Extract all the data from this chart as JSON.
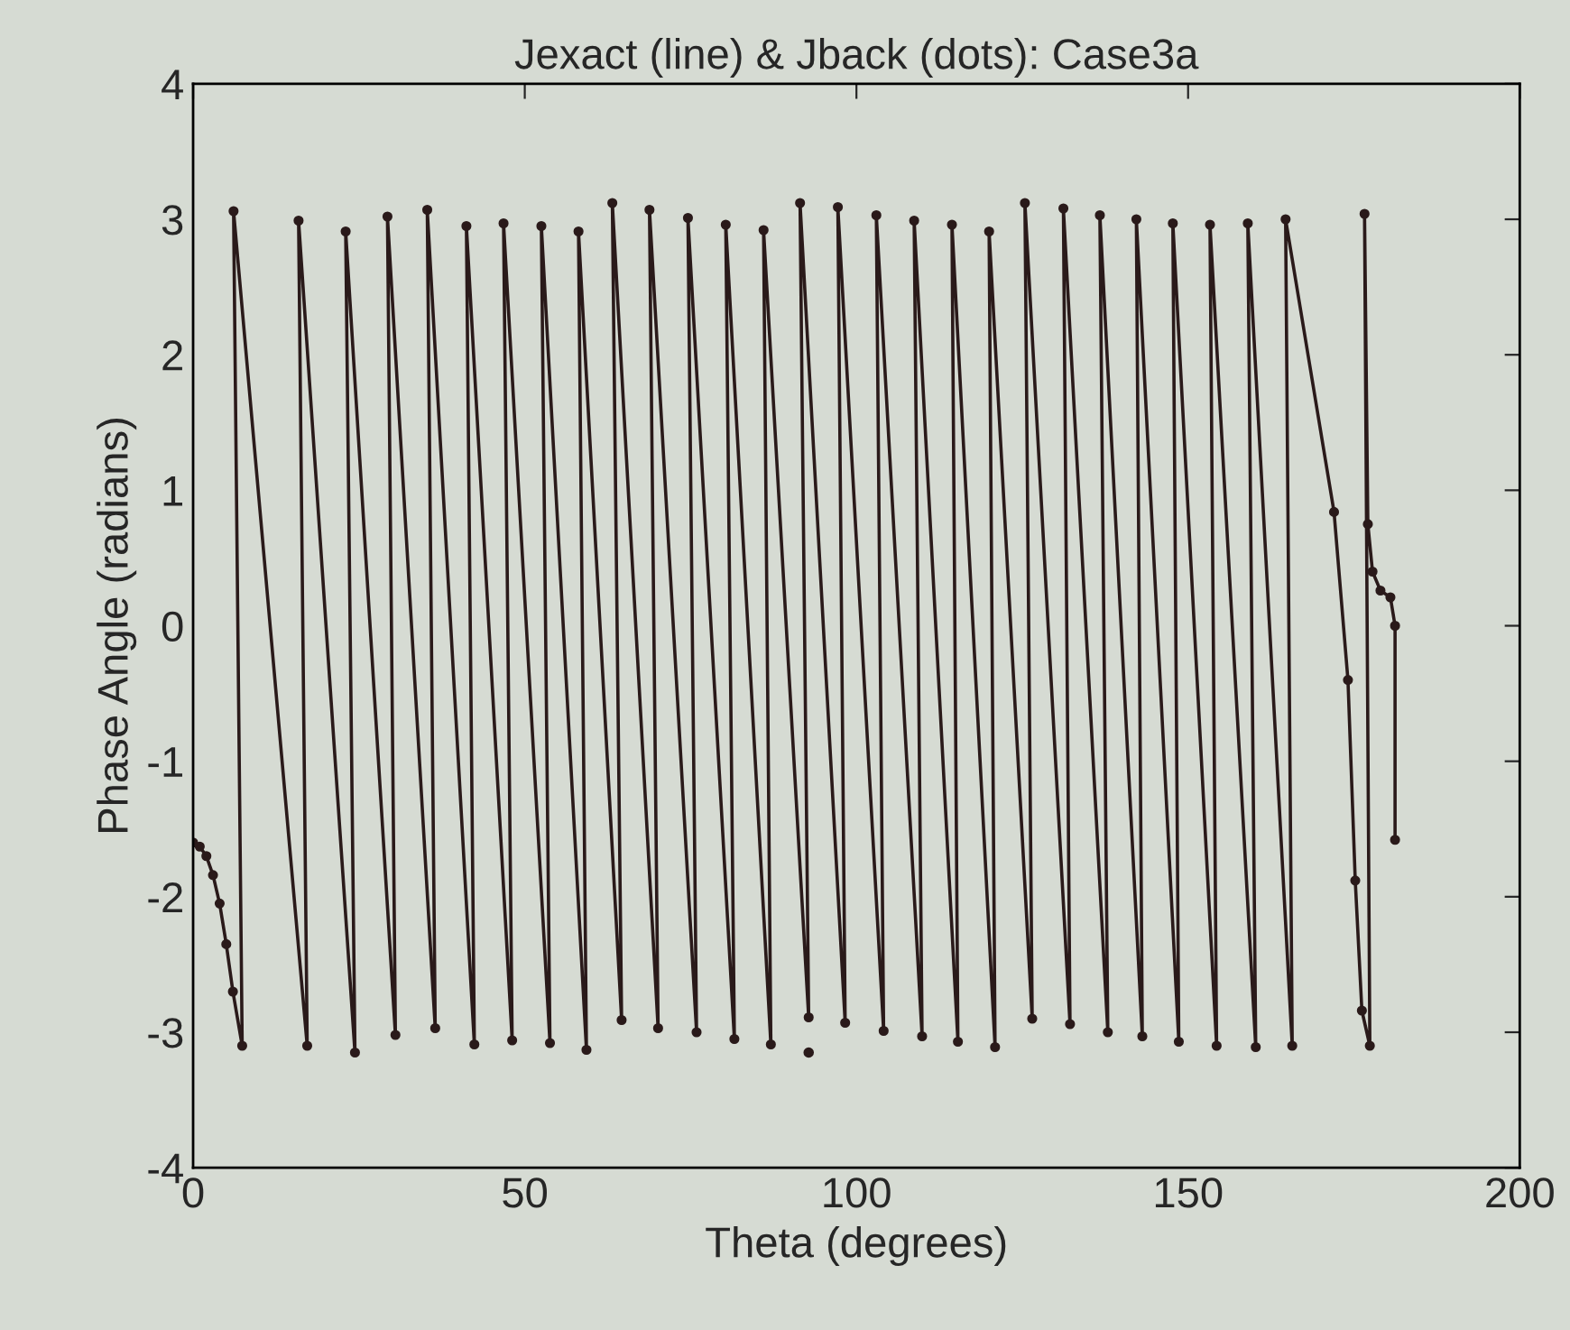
{
  "chart_data": {
    "type": "line",
    "title": "Jexact (line) & Jback (dots): Case3a",
    "xlabel": "Theta (degrees)",
    "ylabel": "Phase Angle (radians)",
    "series": [
      {
        "color": "#2a1a1a",
        "marker": "circle",
        "line_style": "solid",
        "x": [
          0,
          1,
          2,
          3,
          4,
          5,
          6,
          7.4,
          6.1,
          17.2,
          15.9,
          24.4,
          23.0,
          30.5,
          29.3,
          36.5,
          35.3,
          42.4,
          41.2,
          48.1,
          46.8,
          53.8,
          52.5,
          59.3,
          58.1,
          64.6,
          63.2,
          70.1,
          68.8,
          75.9,
          74.6,
          81.6,
          80.3,
          87.1,
          86.0,
          92.8,
          91.5,
          98.3,
          97.2,
          104.1,
          103.0,
          109.9,
          108.7,
          115.3,
          114.4,
          120.9,
          120.0,
          126.5,
          125.4,
          132.2,
          131.2,
          137.9,
          136.7,
          143.1,
          142.2,
          148.6,
          147.7,
          154.3,
          153.3,
          160.2,
          159.0,
          165.7,
          164.7,
          172.0,
          174.1,
          175.2,
          176.2,
          177.4,
          176.6,
          177.1,
          177.8,
          179.0,
          180.5,
          181.2,
          181.2
        ],
        "values": [
          -1.6,
          -1.63,
          -1.7,
          -1.84,
          -2.05,
          -2.35,
          -2.7,
          -3.1,
          3.06,
          -3.1,
          2.99,
          -3.15,
          2.91,
          -3.02,
          3.02,
          -2.97,
          3.07,
          -3.09,
          2.95,
          -3.06,
          2.97,
          -3.08,
          2.95,
          -3.13,
          2.91,
          -2.91,
          3.12,
          -2.97,
          3.07,
          -3.0,
          3.01,
          -3.05,
          2.96,
          -3.09,
          2.92,
          -2.89,
          3.12,
          -2.93,
          3.09,
          -2.99,
          3.03,
          -3.03,
          2.99,
          -3.07,
          2.96,
          -3.11,
          2.91,
          -2.9,
          3.12,
          -2.94,
          3.08,
          -3.0,
          3.03,
          -3.03,
          3.0,
          -3.07,
          2.97,
          -3.1,
          2.96,
          -3.11,
          2.97,
          -3.1,
          3.0,
          0.84,
          -0.4,
          -1.88,
          -2.84,
          -3.1,
          3.04,
          0.75,
          0.4,
          0.26,
          0.21,
          0.0,
          -1.58
        ]
      },
      {
        "type": "scatter",
        "color": "#2a1a1a",
        "marker": "circle",
        "x": [
          92.8
        ],
        "values": [
          -3.15
        ]
      }
    ],
    "xlim": [
      0,
      200
    ],
    "ylim": [
      -4,
      4
    ],
    "xticks": [
      0,
      50,
      100,
      150,
      200
    ],
    "yticks": [
      -4,
      -3,
      -2,
      -1,
      0,
      1,
      2,
      3,
      4
    ],
    "grid": false,
    "legend": false
  }
}
